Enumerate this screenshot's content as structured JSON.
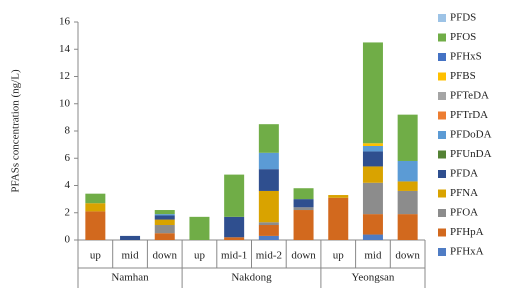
{
  "chart_data": {
    "type": "stacked-bar",
    "y_label": "PFASs concentration (ng/L)",
    "groups": [
      {
        "name": "Namhan",
        "categories": [
          "up",
          "mid",
          "down"
        ]
      },
      {
        "name": "Nakdong",
        "categories": [
          "up",
          "mid-1",
          "mid-2",
          "down"
        ]
      },
      {
        "name": "Yeongsan",
        "categories": [
          "up",
          "mid",
          "down"
        ]
      }
    ],
    "series": [
      {
        "name": "PFDS",
        "color": "#9dc3e6",
        "values": [
          0,
          0,
          0,
          0,
          0,
          0,
          0,
          0,
          0,
          0
        ]
      },
      {
        "name": "PFOS",
        "color": "#70ad47",
        "values": [
          0.7,
          0,
          0.3,
          1.7,
          3.1,
          2.1,
          0.8,
          0,
          7.4,
          3.4
        ]
      },
      {
        "name": "PFHxS",
        "color": "#4472c4",
        "values": [
          0,
          0,
          0,
          0,
          0,
          0,
          0,
          0,
          0,
          0
        ]
      },
      {
        "name": "PFBS",
        "color": "#ffc000",
        "values": [
          0,
          0,
          0,
          0,
          0,
          0,
          0,
          0,
          0.2,
          0
        ]
      },
      {
        "name": "PFTeDA",
        "color": "#a5a5a5",
        "values": [
          0,
          0,
          0,
          0,
          0,
          0,
          0,
          0,
          0,
          0
        ]
      },
      {
        "name": "PFTrDA",
        "color": "#ed7d31",
        "values": [
          0,
          0,
          0,
          0,
          0,
          0,
          0,
          0,
          0,
          0
        ]
      },
      {
        "name": "PFDoDA",
        "color": "#5b9bd5",
        "values": [
          0,
          0,
          0.1,
          0,
          0,
          1.2,
          0,
          0,
          0.4,
          1.5
        ]
      },
      {
        "name": "PFUnDA",
        "color": "#548235",
        "values": [
          0,
          0,
          0,
          0,
          0,
          0,
          0,
          0,
          0,
          0
        ]
      },
      {
        "name": "PFDA",
        "color": "#2f4f8f",
        "values": [
          0,
          0.3,
          0.3,
          0,
          1.5,
          1.6,
          0.6,
          0,
          1.1,
          0
        ]
      },
      {
        "name": "PFNA",
        "color": "#d9a300",
        "values": [
          0.6,
          0,
          0.4,
          0,
          0,
          2.3,
          0,
          0.2,
          1.2,
          0.7
        ]
      },
      {
        "name": "PFOA",
        "color": "#8c8c8c",
        "values": [
          0,
          0,
          0.6,
          0,
          0,
          0.2,
          0.2,
          0,
          2.3,
          1.7
        ]
      },
      {
        "name": "PFHpA",
        "color": "#d2691e",
        "values": [
          2.1,
          0,
          0.5,
          0,
          0.2,
          0.8,
          2.2,
          3.1,
          1.5,
          1.9
        ]
      },
      {
        "name": "PFHxA",
        "color": "#4f7cc4",
        "values": [
          0,
          0,
          0,
          0,
          0,
          0.3,
          0,
          0,
          0.4,
          0
        ]
      }
    ],
    "ylim": [
      0,
      16
    ],
    "yticks": [
      0,
      2,
      4,
      6,
      8,
      10,
      12,
      14,
      16
    ]
  }
}
